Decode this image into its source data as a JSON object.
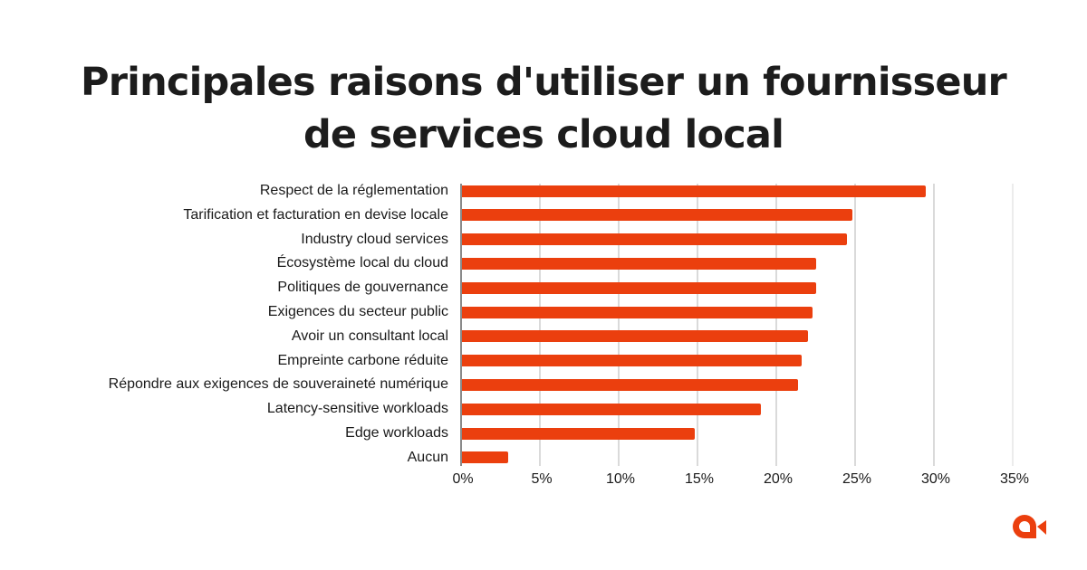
{
  "title": {
    "line1": "Principales raisons d'utiliser un fournisseur",
    "line2": "de services cloud local"
  },
  "colors": {
    "bar": "#EB3F0E",
    "grid": "#DADADA",
    "axis": "#8A8A8A",
    "text": "#1A1A1A",
    "logo": "#EB3F0E"
  },
  "logo": {
    "icon": "brand-logo-icon"
  },
  "chart_data": {
    "type": "bar",
    "orientation": "horizontal",
    "title": "Principales raisons d'utiliser un fournisseur de services cloud local",
    "xlabel": "",
    "ylabel": "",
    "categories": [
      "Respect de la réglementation",
      "Tarification et facturation en devise locale",
      "Industry cloud services",
      "Écosystème local du cloud",
      "Politiques de gouvernance",
      "Exigences du secteur public",
      "Avoir un consultant local",
      "Empreinte carbone réduite",
      "Répondre aux exigences de souveraineté numérique",
      "Latency-sensitive workloads",
      "Edge workloads",
      "Aucun"
    ],
    "values": [
      29.5,
      24.8,
      24.5,
      22.5,
      22.5,
      22.3,
      22.0,
      21.6,
      21.4,
      19.0,
      14.8,
      3.0
    ],
    "unit": "%",
    "xlim": [
      0,
      35
    ],
    "x_ticks": [
      "0%",
      "5%",
      "10%",
      "15%",
      "20%",
      "25%",
      "30%",
      "35%"
    ],
    "grid": true,
    "legend": null
  }
}
